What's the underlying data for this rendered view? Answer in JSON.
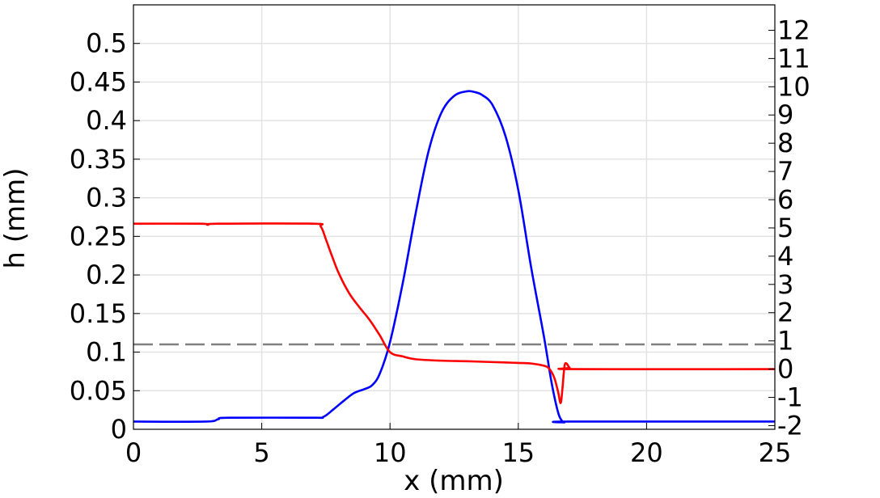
{
  "chart_data": {
    "type": "line",
    "xlabel": "x (mm)",
    "ylabel": "h (mm)",
    "y2label": "",
    "xlim": [
      0,
      25
    ],
    "ylim": [
      0,
      0.55
    ],
    "y2lim": [
      -2.13,
      12.9
    ],
    "grid": true,
    "x_ticks": [
      "0",
      "5",
      "10",
      "15",
      "20",
      "25"
    ],
    "y_ticks": [
      "0",
      "0.05",
      "0.1",
      "0.15",
      "0.2",
      "0.25",
      "0.3",
      "0.35",
      "0.4",
      "0.45",
      "0.5"
    ],
    "y2_ticks": [
      "-2",
      "-1",
      "0",
      "1",
      "2",
      "3",
      "4",
      "5",
      "6",
      "7",
      "8",
      "9",
      "10",
      "11",
      "12"
    ],
    "series": [
      {
        "color": "#0000ff",
        "axis": "left",
        "x": [
          0,
          2.8,
          3.3,
          3.7,
          7,
          7.4,
          7.8,
          8.2,
          8.6,
          9.0,
          9.3,
          9.6,
          10.0,
          10.5,
          11.0,
          11.5,
          12.0,
          12.5,
          13.0,
          13.3,
          13.6,
          14.0,
          14.5,
          15.0,
          15.5,
          16.0,
          16.3,
          16.55,
          16.7,
          16.8,
          17.0,
          25
        ],
        "y": [
          0.01,
          0.01,
          0.013,
          0.015,
          0.015,
          0.016,
          0.026,
          0.037,
          0.047,
          0.052,
          0.057,
          0.072,
          0.113,
          0.19,
          0.28,
          0.36,
          0.41,
          0.432,
          0.438,
          0.437,
          0.433,
          0.42,
          0.38,
          0.31,
          0.21,
          0.12,
          0.06,
          0.022,
          0.011,
          0.009,
          0.01,
          0.01
        ]
      },
      {
        "color": "#ff0000",
        "axis": "right",
        "x": [
          0,
          2.6,
          2.9,
          3.3,
          7.0,
          7.3,
          7.5,
          7.7,
          8.0,
          8.4,
          8.8,
          9.2,
          9.6,
          10.0,
          10.5,
          11.0,
          12.0,
          13.0,
          14.0,
          15.0,
          15.5,
          16.0,
          16.2,
          16.4,
          16.55,
          16.65,
          16.72,
          16.8,
          16.88,
          17.0,
          17.2,
          25
        ],
        "y": [
          5.15,
          5.15,
          5.11,
          5.15,
          5.15,
          5.05,
          4.6,
          4.1,
          3.4,
          2.7,
          2.2,
          1.75,
          1.2,
          0.6,
          0.45,
          0.35,
          0.3,
          0.28,
          0.25,
          0.22,
          0.2,
          0.12,
          0.02,
          -0.3,
          -0.8,
          -1.2,
          -0.7,
          0.1,
          0.2,
          0.05,
          0.0,
          0.0
        ]
      }
    ],
    "reference_line": {
      "axis": "left",
      "y": 0.11,
      "color": "#808080",
      "style": "dashed"
    }
  }
}
